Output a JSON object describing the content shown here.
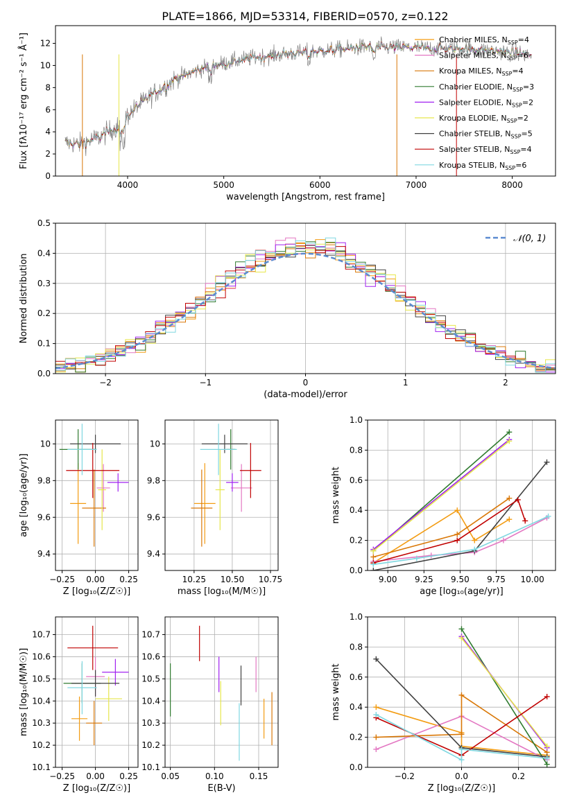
{
  "figure_title": "PLATE=1866, MJD=53314, FIBERID=0570, z=0.122",
  "model_colors": [
    "#f39c12",
    "#e377c2",
    "#d97706",
    "#2f7a2f",
    "#a020f0",
    "#e6e64a",
    "#404040",
    "#c00000",
    "#7fd7e0"
  ],
  "chart_data": [
    {
      "id": "spectrum",
      "type": "line",
      "title": "PLATE=1866, MJD=53314, FIBERID=0570, z=0.122",
      "xlabel": "wavelength [Angstrom, rest frame]",
      "ylabel": "Flux [fλ10⁻¹⁷ erg cm⁻² s⁻¹ Å⁻¹]",
      "xlim": [
        3250,
        8450
      ],
      "ylim": [
        0,
        13.6
      ],
      "xticks": [
        4000,
        5000,
        6000,
        7000,
        8000
      ],
      "yticks": [
        0,
        2,
        4,
        6,
        8,
        10,
        12
      ],
      "continuum": {
        "x": [
          3350,
          3500,
          3700,
          3900,
          4000,
          4200,
          4500,
          4800,
          5000,
          5300,
          5600,
          6000,
          6500,
          7000,
          7500,
          8000,
          8200
        ],
        "y": [
          3.0,
          2.9,
          3.5,
          4.5,
          5.5,
          7.0,
          8.8,
          9.8,
          10.2,
          10.7,
          11.0,
          11.3,
          11.7,
          11.6,
          11.5,
          11.2,
          10.9
        ]
      },
      "data_line_color": "#808080",
      "legend": [
        "Chabrier MILES, N_SSP=4",
        "Salpeter MILES, N_SSP=6",
        "Kroupa MILES, N_SSP=4",
        "Chabrier ELODIE, N_SSP=3",
        "Salpeter ELODIE, N_SSP=2",
        "Kroupa ELODIE, N_SSP=2",
        "Chabrier STELIB, N_SSP=5",
        "Salpeter STELIB, N_SSP=4",
        "Kroupa STELIB, N_SSP=6"
      ],
      "legend_placement": "right",
      "grid": false
    },
    {
      "id": "residuals",
      "type": "step-histogram",
      "xlabel": "(data-model)/error",
      "ylabel": "Normed distribution",
      "xlim": [
        -2.5,
        2.5
      ],
      "ylim": [
        0,
        0.5
      ],
      "xticks": [
        -2,
        -1,
        0,
        1,
        2
      ],
      "xtick_labels": [
        "−2",
        "−1",
        "0",
        "1",
        "2"
      ],
      "yticks": [
        0.0,
        0.1,
        0.2,
        0.3,
        0.4,
        0.5
      ],
      "bin_width": 0.1,
      "grid": true,
      "normal_curve": {
        "label": "𝒩(0, 1)",
        "color": "#5b8bd0",
        "mean": 0,
        "sigma": 1
      },
      "legend_placement": "top-right"
    },
    {
      "id": "age-vs-Z",
      "type": "errorbar",
      "xlabel": "Z [log₁₀(Z/Z☉)]",
      "ylabel": "age  [log₁₀(age/yr)]",
      "xlim": [
        -0.3,
        0.32
      ],
      "ylim": [
        9.31,
        10.13
      ],
      "xticks": [
        -0.25,
        0,
        0.25
      ],
      "xtick_labels": [
        "−0.25",
        "0.00",
        "0.25"
      ],
      "yticks": [
        9.4,
        9.6,
        9.8,
        10.0
      ],
      "grid": true,
      "points": [
        {
          "model": 0,
          "x": -0.13,
          "y": 9.675,
          "xerr": 0.06,
          "yerr": 0.22
        },
        {
          "model": 1,
          "x": 0.06,
          "y": 9.76,
          "xerr": 0.05,
          "yerr": 0.13
        },
        {
          "model": 2,
          "x": -0.01,
          "y": 9.65,
          "xerr": 0.09,
          "yerr": 0.21
        },
        {
          "model": 3,
          "x": -0.13,
          "y": 9.97,
          "xerr": 0.14,
          "yerr": 0.11
        },
        {
          "model": 4,
          "x": 0.17,
          "y": 9.79,
          "xerr": 0.08,
          "yerr": 0.05
        },
        {
          "model": 5,
          "x": 0.05,
          "y": 9.75,
          "xerr": 0.03,
          "yerr": 0.22
        },
        {
          "model": 6,
          "x": 0.0,
          "y": 10.0,
          "xerr": 0.19,
          "yerr": 0.05
        },
        {
          "model": 7,
          "x": -0.02,
          "y": 9.855,
          "xerr": 0.2,
          "yerr": 0.15
        },
        {
          "model": 8,
          "x": -0.1,
          "y": 9.97,
          "xerr": 0.11,
          "yerr": 0.14
        }
      ]
    },
    {
      "id": "age-vs-mass",
      "type": "errorbar",
      "xlabel": "mass [log₁₀(M/M☉)]",
      "ylabel": "",
      "xlim": [
        10.06,
        10.8
      ],
      "ylim": [
        9.31,
        10.13
      ],
      "xticks": [
        10.25,
        10.5,
        10.75
      ],
      "xtick_labels": [
        "10.25",
        "10.50",
        "10.75"
      ],
      "yticks": [
        9.4,
        9.6,
        9.8,
        10.0
      ],
      "grid": true,
      "points": [
        {
          "model": 0,
          "x": 10.32,
          "y": 9.675,
          "xerr": 0.07,
          "yerr": 0.22
        },
        {
          "model": 1,
          "x": 10.56,
          "y": 9.76,
          "xerr": 0.07,
          "yerr": 0.13
        },
        {
          "model": 2,
          "x": 10.3,
          "y": 9.65,
          "xerr": 0.07,
          "yerr": 0.21
        },
        {
          "model": 3,
          "x": 10.49,
          "y": 9.97,
          "xerr": 0.03,
          "yerr": 0.11
        },
        {
          "model": 4,
          "x": 10.5,
          "y": 9.79,
          "xerr": 0.04,
          "yerr": 0.05
        },
        {
          "model": 5,
          "x": 10.42,
          "y": 9.75,
          "xerr": 0.03,
          "yerr": 0.22
        },
        {
          "model": 6,
          "x": 10.45,
          "y": 10.0,
          "xerr": 0.15,
          "yerr": 0.05
        },
        {
          "model": 7,
          "x": 10.62,
          "y": 9.855,
          "xerr": 0.07,
          "yerr": 0.15
        },
        {
          "model": 8,
          "x": 10.41,
          "y": 9.97,
          "xerr": 0.12,
          "yerr": 0.14
        }
      ]
    },
    {
      "id": "weight-vs-age",
      "type": "line",
      "xlabel": "age  [log₁₀(age/yr)]",
      "ylabel": "mass weight",
      "xlim": [
        8.86,
        10.16
      ],
      "ylim": [
        0,
        1
      ],
      "xticks": [
        9.0,
        9.25,
        9.5,
        9.75,
        10.0
      ],
      "xtick_labels": [
        "9.00",
        "9.25",
        "9.50",
        "9.75",
        "10.00"
      ],
      "yticks": [
        0.0,
        0.2,
        0.4,
        0.6,
        0.8,
        1.0
      ],
      "grid": true,
      "series": [
        {
          "model": 0,
          "x": [
            8.9,
            9.48,
            9.6,
            9.84
          ],
          "y": [
            0.05,
            0.4,
            0.2,
            0.34
          ]
        },
        {
          "model": 1,
          "x": [
            8.9,
            9.3,
            9.6,
            9.8,
            10.1
          ],
          "y": [
            0.06,
            0.1,
            0.12,
            0.2,
            0.35
          ]
        },
        {
          "model": 2,
          "x": [
            8.9,
            9.48,
            9.84
          ],
          "y": [
            0.09,
            0.24,
            0.48
          ]
        },
        {
          "model": 3,
          "x": [
            8.9,
            9.84
          ],
          "y": [
            0.13,
            0.92
          ]
        },
        {
          "model": 4,
          "x": [
            8.9,
            9.84
          ],
          "y": [
            0.14,
            0.87
          ]
        },
        {
          "model": 5,
          "x": [
            8.9,
            9.84
          ],
          "y": [
            0.13,
            0.86
          ]
        },
        {
          "model": 6,
          "x": [
            8.9,
            9.6,
            10.1
          ],
          "y": [
            0.0,
            0.13,
            0.72
          ]
        },
        {
          "model": 7,
          "x": [
            8.9,
            9.48,
            9.9,
            9.95
          ],
          "y": [
            0.05,
            0.2,
            0.47,
            0.33
          ]
        },
        {
          "model": 8,
          "x": [
            8.9,
            9.2,
            9.6,
            10.11
          ],
          "y": [
            0.04,
            0.08,
            0.14,
            0.36
          ]
        }
      ]
    },
    {
      "id": "mass-vs-Z",
      "type": "errorbar",
      "xlabel": "Z [log₁₀(Z/Z☉)]",
      "ylabel": "mass [log₁₀(M/M☉)]",
      "xlim": [
        -0.3,
        0.32
      ],
      "ylim": [
        10.1,
        10.78
      ],
      "xticks": [
        -0.25,
        0,
        0.25
      ],
      "xtick_labels": [
        "−0.25",
        "0.00",
        "0.25"
      ],
      "yticks": [
        10.1,
        10.2,
        10.3,
        10.4,
        10.5,
        10.6,
        10.7
      ],
      "grid": true,
      "points": [
        {
          "model": 0,
          "x": -0.12,
          "y": 10.32,
          "xerr": 0.06,
          "yerr": 0.1
        },
        {
          "model": 1,
          "x": -0.0,
          "y": 10.51,
          "xerr": 0.07,
          "yerr": 0.09
        },
        {
          "model": 2,
          "x": -0.01,
          "y": 10.3,
          "xerr": 0.06,
          "yerr": 0.1
        },
        {
          "model": 3,
          "x": -0.1,
          "y": 10.48,
          "xerr": 0.14,
          "yerr": 0.09
        },
        {
          "model": 4,
          "x": 0.15,
          "y": 10.53,
          "xerr": 0.1,
          "yerr": 0.06
        },
        {
          "model": 5,
          "x": 0.1,
          "y": 10.41,
          "xerr": 0.1,
          "yerr": 0.1
        },
        {
          "model": 6,
          "x": 0.0,
          "y": 10.48,
          "xerr": 0.18,
          "yerr": 0.06
        },
        {
          "model": 7,
          "x": -0.02,
          "y": 10.64,
          "xerr": 0.19,
          "yerr": 0.1
        },
        {
          "model": 8,
          "x": -0.1,
          "y": 10.46,
          "xerr": 0.11,
          "yerr": 0.12
        }
      ]
    },
    {
      "id": "mass-vs-EBV",
      "type": "errorbar",
      "xlabel": "E(B-V)",
      "ylabel": "",
      "xlim": [
        0.044,
        0.172
      ],
      "ylim": [
        10.1,
        10.78
      ],
      "xticks": [
        0.05,
        0.1,
        0.15
      ],
      "xtick_labels": [
        "0.05",
        "0.10",
        "0.15"
      ],
      "yticks": [
        10.1,
        10.2,
        10.3,
        10.4,
        10.5,
        10.6,
        10.7
      ],
      "grid": true,
      "points": [
        {
          "model": 0,
          "x": 0.156,
          "y": 10.32,
          "xerr": 0,
          "yerr": 0.09
        },
        {
          "model": 1,
          "x": 0.147,
          "y": 10.52,
          "xerr": 0,
          "yerr": 0.08
        },
        {
          "model": 2,
          "x": 0.165,
          "y": 10.32,
          "xerr": 0,
          "yerr": 0.12
        },
        {
          "model": 3,
          "x": 0.05,
          "y": 10.45,
          "xerr": 0,
          "yerr": 0.12
        },
        {
          "model": 4,
          "x": 0.105,
          "y": 10.52,
          "xerr": 0,
          "yerr": 0.08
        },
        {
          "model": 5,
          "x": 0.107,
          "y": 10.39,
          "xerr": 0,
          "yerr": 0.1
        },
        {
          "model": 6,
          "x": 0.13,
          "y": 10.47,
          "xerr": 0,
          "yerr": 0.09
        },
        {
          "model": 7,
          "x": 0.083,
          "y": 10.66,
          "xerr": 0,
          "yerr": 0.08
        },
        {
          "model": 8,
          "x": 0.128,
          "y": 10.26,
          "xerr": 0,
          "yerr": 0.13
        }
      ]
    },
    {
      "id": "weight-vs-Z",
      "type": "line",
      "xlabel": "Z [log₁₀(Z/Z☉)]",
      "ylabel": "mass weight",
      "xlim": [
        -0.33,
        0.33
      ],
      "ylim": [
        0,
        1
      ],
      "xticks": [
        -0.2,
        0,
        0.2
      ],
      "xtick_labels": [
        "−0.2",
        "0.0",
        "0.2"
      ],
      "yticks": [
        0.0,
        0.2,
        0.4,
        0.6,
        0.8,
        1.0
      ],
      "grid": true,
      "series": [
        {
          "model": 0,
          "x": [
            -0.3,
            0.0,
            0.0,
            0.3
          ],
          "y": [
            0.4,
            0.23,
            0.14,
            0.08
          ]
        },
        {
          "model": 1,
          "x": [
            -0.3,
            0.0,
            0.3
          ],
          "y": [
            0.12,
            0.34,
            0.05
          ]
        },
        {
          "model": 2,
          "x": [
            -0.3,
            0.0,
            0.0,
            0.3
          ],
          "y": [
            0.2,
            0.22,
            0.48,
            0.1
          ]
        },
        {
          "model": 3,
          "x": [
            0.0,
            0.3
          ],
          "y": [
            0.92,
            0.02
          ]
        },
        {
          "model": 4,
          "x": [
            0.0,
            0.3
          ],
          "y": [
            0.87,
            0.13
          ]
        },
        {
          "model": 5,
          "x": [
            0.0,
            0.3
          ],
          "y": [
            0.86,
            0.14
          ]
        },
        {
          "model": 6,
          "x": [
            -0.3,
            0.0,
            0.3
          ],
          "y": [
            0.72,
            0.13,
            0.07
          ]
        },
        {
          "model": 7,
          "x": [
            -0.3,
            0.0,
            0.3
          ],
          "y": [
            0.33,
            0.08,
            0.47
          ]
        },
        {
          "model": 8,
          "x": [
            -0.3,
            0.0,
            0.0,
            0.3
          ],
          "y": [
            0.35,
            0.05,
            0.12,
            0.06
          ]
        }
      ]
    }
  ]
}
